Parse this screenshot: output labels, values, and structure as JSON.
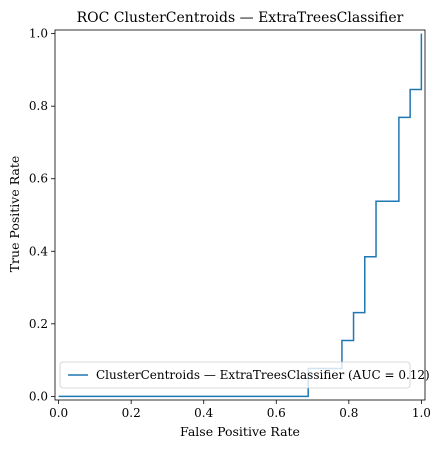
{
  "chart_data": {
    "type": "line",
    "title": "ROC ClusterCentroids — ExtraTreesClassifier",
    "xlabel": "False Positive Rate",
    "ylabel": "True Positive Rate",
    "xlim": [
      -0.01,
      1.01
    ],
    "ylim": [
      -0.01,
      1.01
    ],
    "xticks": [
      "0.0",
      "0.2",
      "0.4",
      "0.6",
      "0.8",
      "1.0"
    ],
    "yticks": [
      "0.0",
      "0.2",
      "0.4",
      "0.6",
      "0.8",
      "1.0"
    ],
    "grid": false,
    "legend_position": "lower-left",
    "series": [
      {
        "name": "ClusterCentroids — ExtraTreesClassifier (AUC = 0.12)",
        "color": "#1f77b4",
        "x": [
          0.0,
          0.0,
          0.688,
          0.688,
          0.781,
          0.781,
          0.813,
          0.813,
          0.844,
          0.844,
          0.875,
          0.875,
          0.938,
          0.938,
          0.969,
          0.969,
          1.0,
          1.0
        ],
        "y": [
          0.0,
          0.0,
          0.0,
          0.077,
          0.077,
          0.154,
          0.154,
          0.231,
          0.231,
          0.385,
          0.385,
          0.538,
          0.538,
          0.769,
          0.769,
          0.846,
          0.846,
          1.0
        ]
      }
    ]
  }
}
